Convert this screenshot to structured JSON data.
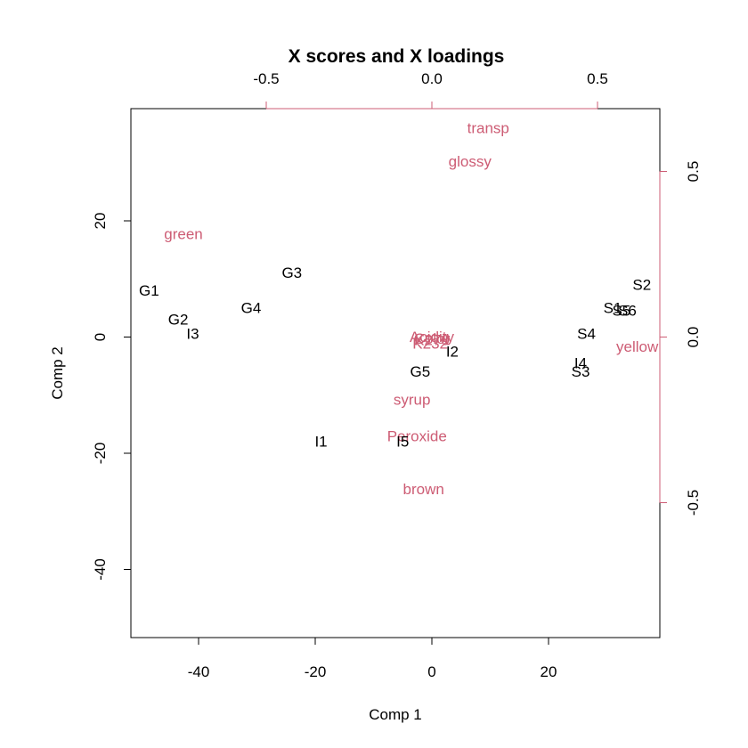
{
  "chart_data": {
    "type": "scatter",
    "title": "X scores and X loadings",
    "xlabel": "Comp 1",
    "ylabel": "Comp 2",
    "loading_color": "#cd5c74",
    "score_color": "#000000",
    "x_ticks": [
      -40,
      -20,
      0,
      20
    ],
    "y_ticks": [
      -40,
      -20,
      0,
      20
    ],
    "top_ticks": [
      -0.5,
      0.0,
      0.5
    ],
    "right_ticks": [
      -0.5,
      0.0,
      0.5
    ],
    "x_tick_labels": [
      "-40",
      "-20",
      "0",
      "20"
    ],
    "y_tick_labels": [
      "-40",
      "-20",
      "0",
      "20"
    ],
    "top_tick_labels": [
      "-0.5",
      "0.0",
      "0.5"
    ],
    "right_tick_labels": [
      "-0.5",
      "0.0",
      "0.5"
    ],
    "scores": [
      {
        "label": "G1",
        "x": -48.5,
        "y": 8.0
      },
      {
        "label": "G2",
        "x": -43.5,
        "y": 3.0
      },
      {
        "label": "I3",
        "x": -41.0,
        "y": 0.5
      },
      {
        "label": "G4",
        "x": -31.0,
        "y": 5.0
      },
      {
        "label": "G3",
        "x": -24.0,
        "y": 11.0
      },
      {
        "label": "I1",
        "x": -19.0,
        "y": -18.0
      },
      {
        "label": "I5",
        "x": -5.0,
        "y": -18.0
      },
      {
        "label": "G5",
        "x": -2.0,
        "y": -6.0
      },
      {
        "label": "I2",
        "x": 3.5,
        "y": -2.5
      },
      {
        "label": "I4",
        "x": 25.5,
        "y": -4.5
      },
      {
        "label": "S3",
        "x": 25.5,
        "y": -6.0
      },
      {
        "label": "S4",
        "x": 26.5,
        "y": 0.5
      },
      {
        "label": "S1",
        "x": 31.0,
        "y": 5.0
      },
      {
        "label": "S5",
        "x": 32.5,
        "y": 4.5
      },
      {
        "label": "S6",
        "x": 33.5,
        "y": 4.5
      },
      {
        "label": "S2",
        "x": 36.0,
        "y": 9.0
      }
    ],
    "loadings": [
      {
        "label": "transp",
        "x": 0.17,
        "y": 0.63
      },
      {
        "label": "glossy",
        "x": 0.115,
        "y": 0.53
      },
      {
        "label": "green",
        "x": -0.75,
        "y": 0.31
      },
      {
        "label": "Acidity",
        "x": 0.0,
        "y": 0.0
      },
      {
        "label": "Color",
        "x": 0.0,
        "y": -0.005
      },
      {
        "label": "K232",
        "x": -0.005,
        "y": -0.02
      },
      {
        "label": "K270",
        "x": 0.0,
        "y": -0.01
      },
      {
        "label": "yellow",
        "x": 0.62,
        "y": -0.03
      },
      {
        "label": "syrup",
        "x": -0.06,
        "y": -0.19
      },
      {
        "label": "Peroxide",
        "x": -0.045,
        "y": -0.3
      },
      {
        "label": "brown",
        "x": -0.025,
        "y": -0.46
      }
    ]
  }
}
